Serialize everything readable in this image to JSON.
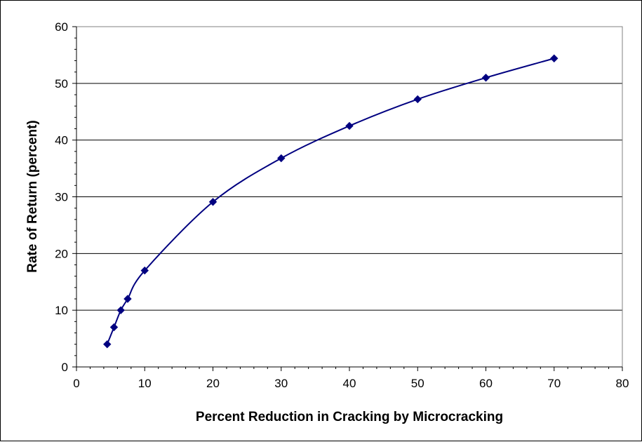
{
  "chart_data": {
    "type": "line",
    "title": "",
    "xlabel": "Percent Reduction in Cracking by Microcracking",
    "ylabel": "Rate of Return (percent)",
    "xlim": [
      0,
      80
    ],
    "ylim": [
      0,
      60
    ],
    "x_ticks": [
      0,
      10,
      20,
      30,
      40,
      50,
      60,
      70,
      80
    ],
    "y_ticks": [
      0,
      10,
      20,
      30,
      40,
      50,
      60
    ],
    "grid": "horizontal major gridlines",
    "legend": "none",
    "line_style": "smoothed",
    "marker": "diamond",
    "series": [
      {
        "color": "#000080",
        "points": [
          {
            "x": 4.5,
            "y": 4
          },
          {
            "x": 5.5,
            "y": 7
          },
          {
            "x": 6.5,
            "y": 10
          },
          {
            "x": 7.5,
            "y": 12
          },
          {
            "x": 10,
            "y": 17
          },
          {
            "x": 20,
            "y": 29.1
          },
          {
            "x": 30,
            "y": 36.8
          },
          {
            "x": 40,
            "y": 42.5
          },
          {
            "x": 50,
            "y": 47.2
          },
          {
            "x": 60,
            "y": 51
          },
          {
            "x": 70,
            "y": 54.4
          }
        ]
      }
    ]
  }
}
